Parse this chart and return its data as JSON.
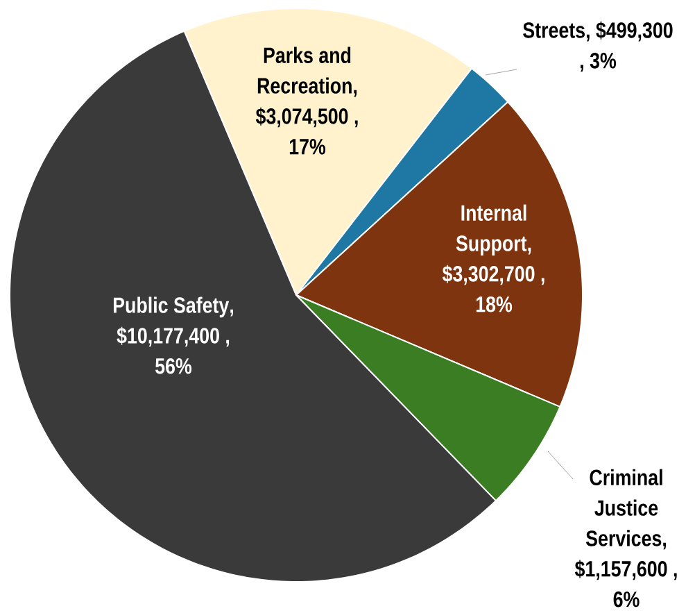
{
  "chart_data": {
    "type": "pie",
    "categories": [
      "Parks and Recreation",
      "Streets",
      "Internal Support",
      "Criminal Justice Services",
      "Public Safety"
    ],
    "values": [
      3074500,
      499300,
      3302700,
      1157600,
      10177400
    ],
    "colors": [
      "#fff2cc",
      "#1f78a4",
      "#7f3410",
      "#3b7d23",
      "#3a3a3a"
    ],
    "value_labels": [
      ", $3,074,500 , 17%",
      ", $499,300 , 3%",
      ", $3,302,700 , 18%",
      ", $1,157,600 , 6%",
      ", $10,177,400 , 56%"
    ]
  }
}
